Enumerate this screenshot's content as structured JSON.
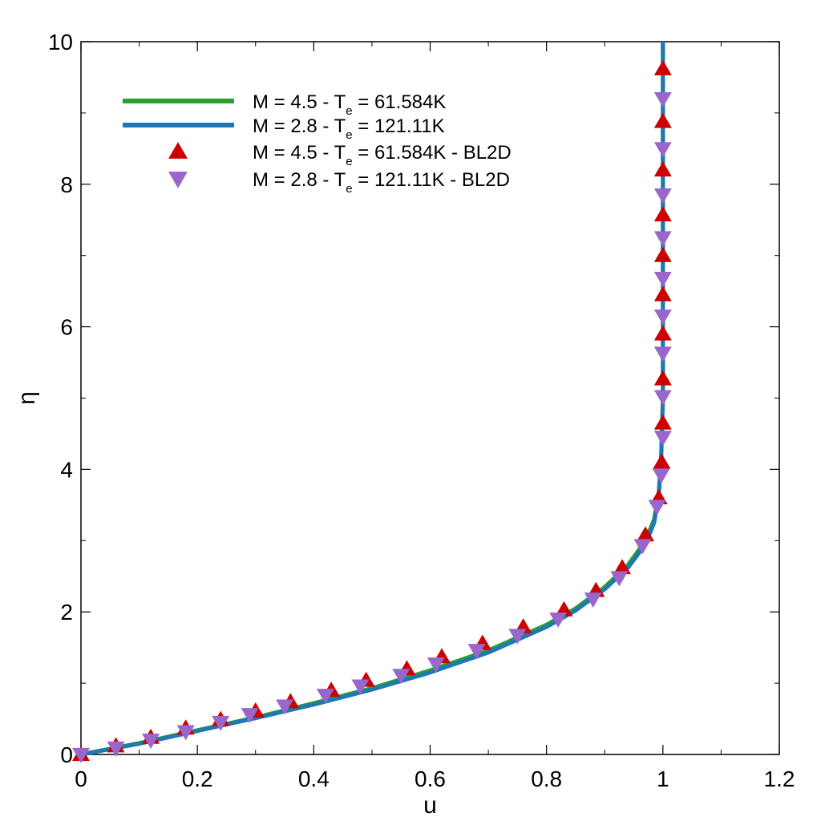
{
  "chart_data": {
    "type": "line",
    "title": "",
    "xlabel": "u",
    "ylabel": "η",
    "xlim": [
      0,
      1.2
    ],
    "ylim": [
      0,
      10
    ],
    "x_ticks": [
      "0",
      "0.2",
      "0.4",
      "0.6",
      "0.8",
      "1",
      "1.2"
    ],
    "y_ticks": [
      "0",
      "2",
      "4",
      "6",
      "8",
      "10"
    ],
    "grid": false,
    "legend_position": "top-left",
    "series": [
      {
        "name": "M = 4.5 - Te = 61.584K",
        "legend": {
          "pre": "M = 4.5 - T",
          "sub": "e",
          "post": " = 61.584K"
        },
        "kind": "line",
        "color": "#2ca02c",
        "points": [
          [
            0,
            0
          ],
          [
            0.1,
            0.16
          ],
          [
            0.2,
            0.34
          ],
          [
            0.3,
            0.52
          ],
          [
            0.4,
            0.72
          ],
          [
            0.5,
            0.93
          ],
          [
            0.6,
            1.18
          ],
          [
            0.7,
            1.46
          ],
          [
            0.8,
            1.82
          ],
          [
            0.85,
            2.05
          ],
          [
            0.9,
            2.35
          ],
          [
            0.94,
            2.66
          ],
          [
            0.97,
            3.0
          ],
          [
            0.985,
            3.3
          ],
          [
            0.993,
            3.7
          ],
          [
            0.997,
            4.2
          ],
          [
            1.0,
            5.0
          ],
          [
            1.0,
            10.0
          ]
        ]
      },
      {
        "name": "M = 2.8 - Te = 121.11K",
        "legend": {
          "pre": "M = 2.8 - T",
          "sub": "e",
          "post": " = 121.11K"
        },
        "kind": "line",
        "color": "#1f77b4",
        "points": [
          [
            0,
            0
          ],
          [
            0.1,
            0.15
          ],
          [
            0.2,
            0.33
          ],
          [
            0.3,
            0.51
          ],
          [
            0.4,
            0.7
          ],
          [
            0.5,
            0.91
          ],
          [
            0.6,
            1.15
          ],
          [
            0.7,
            1.43
          ],
          [
            0.8,
            1.79
          ],
          [
            0.85,
            2.02
          ],
          [
            0.9,
            2.32
          ],
          [
            0.94,
            2.62
          ],
          [
            0.97,
            2.95
          ],
          [
            0.985,
            3.25
          ],
          [
            0.993,
            3.65
          ],
          [
            0.997,
            4.15
          ],
          [
            1.0,
            5.0
          ],
          [
            1.0,
            10.0
          ]
        ]
      },
      {
        "name": "M = 4.5 - Te = 61.584K - BL2D",
        "legend": {
          "pre": "M = 4.5 - T",
          "sub": "e",
          "post": " = 61.584K - BL2D"
        },
        "kind": "markers",
        "marker": "triangle-up",
        "color": "#cc0000",
        "points": [
          [
            0,
            0
          ],
          [
            0.06,
            0.12
          ],
          [
            0.12,
            0.24
          ],
          [
            0.18,
            0.37
          ],
          [
            0.24,
            0.49
          ],
          [
            0.3,
            0.61
          ],
          [
            0.36,
            0.74
          ],
          [
            0.43,
            0.9
          ],
          [
            0.49,
            1.04
          ],
          [
            0.56,
            1.2
          ],
          [
            0.62,
            1.37
          ],
          [
            0.69,
            1.56
          ],
          [
            0.76,
            1.79
          ],
          [
            0.83,
            2.03
          ],
          [
            0.885,
            2.3
          ],
          [
            0.93,
            2.62
          ],
          [
            0.97,
            3.08
          ],
          [
            0.993,
            3.6
          ],
          [
            0.998,
            4.1
          ],
          [
            1.0,
            4.65
          ],
          [
            1.0,
            5.27
          ],
          [
            1.0,
            5.9
          ],
          [
            1.0,
            6.45
          ],
          [
            1.0,
            7.0
          ],
          [
            1.0,
            7.57
          ],
          [
            1.0,
            8.2
          ],
          [
            1.0,
            8.88
          ],
          [
            1.0,
            9.62
          ]
        ]
      },
      {
        "name": "M = 2.8 - Te = 121.11K - BL2D",
        "legend": {
          "pre": "M = 2.8 - T",
          "sub": "e",
          "post": " = 121.11K - BL2D"
        },
        "kind": "markers",
        "marker": "triangle-down",
        "color": "#9966cc",
        "points": [
          [
            0,
            0
          ],
          [
            0.06,
            0.09
          ],
          [
            0.12,
            0.2
          ],
          [
            0.18,
            0.32
          ],
          [
            0.24,
            0.45
          ],
          [
            0.29,
            0.56
          ],
          [
            0.35,
            0.68
          ],
          [
            0.42,
            0.83
          ],
          [
            0.48,
            0.96
          ],
          [
            0.55,
            1.11
          ],
          [
            0.61,
            1.27
          ],
          [
            0.68,
            1.46
          ],
          [
            0.75,
            1.67
          ],
          [
            0.82,
            1.9
          ],
          [
            0.88,
            2.18
          ],
          [
            0.925,
            2.48
          ],
          [
            0.965,
            2.93
          ],
          [
            0.99,
            3.48
          ],
          [
            0.997,
            3.92
          ],
          [
            1.0,
            4.45
          ],
          [
            1.0,
            5.02
          ],
          [
            1.0,
            5.63
          ],
          [
            1.0,
            6.15
          ],
          [
            1.0,
            6.68
          ],
          [
            1.0,
            7.25
          ],
          [
            1.0,
            7.85
          ],
          [
            1.0,
            8.5
          ],
          [
            1.0,
            9.2
          ]
        ]
      }
    ]
  }
}
